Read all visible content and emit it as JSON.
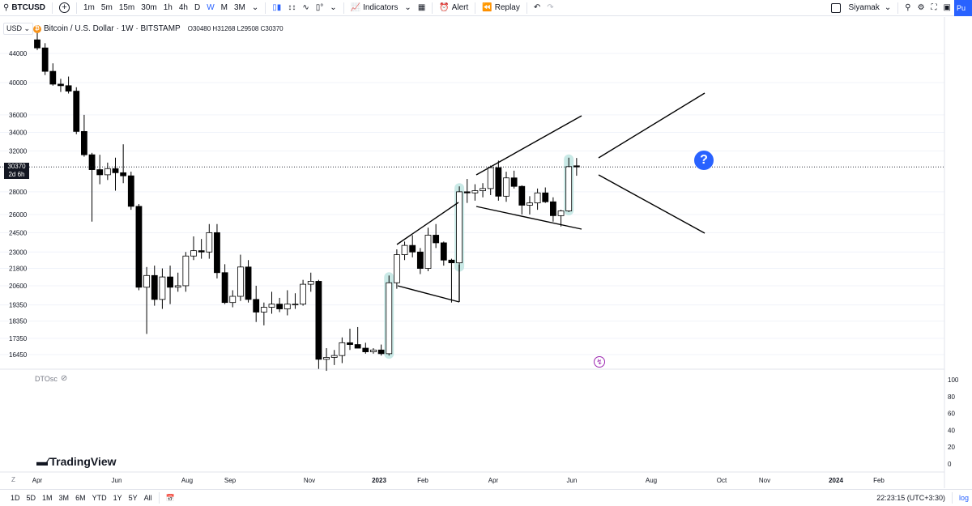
{
  "toolbar": {
    "symbol": "BTCUSD",
    "intervals": [
      "1m",
      "5m",
      "15m",
      "30m",
      "1h",
      "4h",
      "D",
      "W",
      "M",
      "3M"
    ],
    "active_interval": "W",
    "indicators_label": "Indicators",
    "alert_label": "Alert",
    "replay_label": "Replay",
    "user_label": "Siyamak",
    "publish_label": "Pu"
  },
  "legend": {
    "currency": "USD",
    "title": "Bitcoin / U.S. Dollar · 1W · BITSTAMP",
    "ohlc": "O30480 H31268 L29508 C30370"
  },
  "price_tag": {
    "price": "30370",
    "countdown": "2d 6h"
  },
  "indicator": {
    "name": "DTOsc"
  },
  "brand": "TradingView",
  "bottom": {
    "ranges": [
      "1D",
      "5D",
      "1M",
      "3M",
      "6M",
      "YTD",
      "1Y",
      "5Y",
      "All"
    ],
    "clock": "22:23:15 (UTC+3:30)",
    "log_label": "log",
    "z_label": "Z"
  },
  "chart_data": {
    "type": "candlestick",
    "title": "Bitcoin / U.S. Dollar · 1W · BITSTAMP",
    "y_ticks": [
      44000,
      40000,
      36000,
      34000,
      32000,
      28000,
      26000,
      24500,
      23000,
      21800,
      20600,
      19350,
      18350,
      17350,
      16450
    ],
    "osc_ticks": [
      100,
      80,
      60,
      40,
      20,
      0
    ],
    "x_ticks": [
      "Apr",
      "Jun",
      "Aug",
      "Sep",
      "Nov",
      "2023",
      "Feb",
      "Apr",
      "Jun",
      "Aug",
      "Oct",
      "Nov",
      "2024",
      "Feb"
    ],
    "last_price": 30370,
    "candles": [
      [
        46000,
        47500,
        44500,
        44800
      ],
      [
        44800,
        45500,
        41000,
        41500
      ],
      [
        41500,
        42600,
        39600,
        39800
      ],
      [
        39800,
        40500,
        38800,
        39600
      ],
      [
        39600,
        40800,
        38600,
        38900
      ],
      [
        38900,
        39400,
        33800,
        34100
      ],
      [
        34100,
        36000,
        31400,
        31600
      ],
      [
        31600,
        31800,
        25400,
        30100
      ],
      [
        30100,
        31600,
        28700,
        29600
      ],
      [
        29600,
        30800,
        29100,
        30200
      ],
      [
        30200,
        31300,
        28100,
        29800
      ],
      [
        29800,
        32700,
        28800,
        29500
      ],
      [
        29500,
        29900,
        26400,
        26700
      ],
      [
        26700,
        26900,
        20300,
        20500
      ],
      [
        20500,
        21900,
        17600,
        21300
      ],
      [
        21300,
        22000,
        19300,
        19700
      ],
      [
        19700,
        21800,
        19100,
        21200
      ],
      [
        21200,
        22000,
        19400,
        20500
      ],
      [
        20500,
        21500,
        20200,
        20600
      ],
      [
        20600,
        23000,
        20200,
        22700
      ],
      [
        22700,
        24200,
        22400,
        23100
      ],
      [
        23100,
        24000,
        22500,
        23000
      ],
      [
        23000,
        25200,
        22500,
        24500
      ],
      [
        24500,
        25200,
        21100,
        21500
      ],
      [
        21500,
        22100,
        19400,
        19500
      ],
      [
        19500,
        20300,
        19200,
        19900
      ],
      [
        19900,
        22800,
        19600,
        21900
      ],
      [
        21900,
        22400,
        19500,
        19700
      ],
      [
        19700,
        20600,
        18300,
        18900
      ],
      [
        18900,
        19500,
        18100,
        19200
      ],
      [
        19200,
        20200,
        18800,
        19400
      ],
      [
        19400,
        19800,
        18900,
        19100
      ],
      [
        19100,
        20300,
        18700,
        19400
      ],
      [
        19400,
        20100,
        19100,
        19400
      ],
      [
        19400,
        21000,
        19300,
        20700
      ],
      [
        20700,
        21500,
        20200,
        20900
      ],
      [
        20900,
        21000,
        15700,
        16200
      ],
      [
        16200,
        16800,
        15600,
        16300
      ],
      [
        16300,
        16700,
        15900,
        16400
      ],
      [
        16400,
        17400,
        16000,
        17100
      ],
      [
        17100,
        17900,
        16700,
        17000
      ],
      [
        17000,
        18000,
        16800,
        16800
      ],
      [
        16800,
        17100,
        16500,
        16600
      ],
      [
        16600,
        16800,
        16500,
        16700
      ],
      [
        16700,
        17000,
        16400,
        16500
      ],
      [
        16500,
        21300,
        16400,
        20800
      ],
      [
        20800,
        23200,
        20400,
        22800
      ],
      [
        22800,
        23800,
        22400,
        23500
      ],
      [
        23500,
        24300,
        22600,
        23000
      ],
      [
        23000,
        23300,
        21400,
        21800
      ],
      [
        21800,
        24900,
        21600,
        24300
      ],
      [
        24300,
        25200,
        23300,
        23700
      ],
      [
        23700,
        23800,
        22000,
        22400
      ],
      [
        22400,
        22500,
        19500,
        22200
      ],
      [
        22200,
        28500,
        21800,
        28000
      ],
      [
        28000,
        29200,
        27000,
        27900
      ],
      [
        27900,
        28700,
        27200,
        28100
      ],
      [
        28100,
        28800,
        27500,
        28300
      ],
      [
        28300,
        30500,
        27700,
        30300
      ],
      [
        30300,
        31000,
        27200,
        27600
      ],
      [
        27600,
        29900,
        27100,
        29300
      ],
      [
        29300,
        30000,
        28300,
        28500
      ],
      [
        28500,
        28600,
        26000,
        26800
      ],
      [
        26800,
        27600,
        26000,
        27000
      ],
      [
        27000,
        28300,
        26400,
        27900
      ],
      [
        27900,
        28400,
        27000,
        27100
      ],
      [
        27100,
        27500,
        25400,
        25900
      ],
      [
        25900,
        26400,
        25000,
        26300
      ],
      [
        26300,
        31300,
        26200,
        30400
      ],
      [
        30480,
        31268,
        29508,
        30370
      ]
    ]
  }
}
